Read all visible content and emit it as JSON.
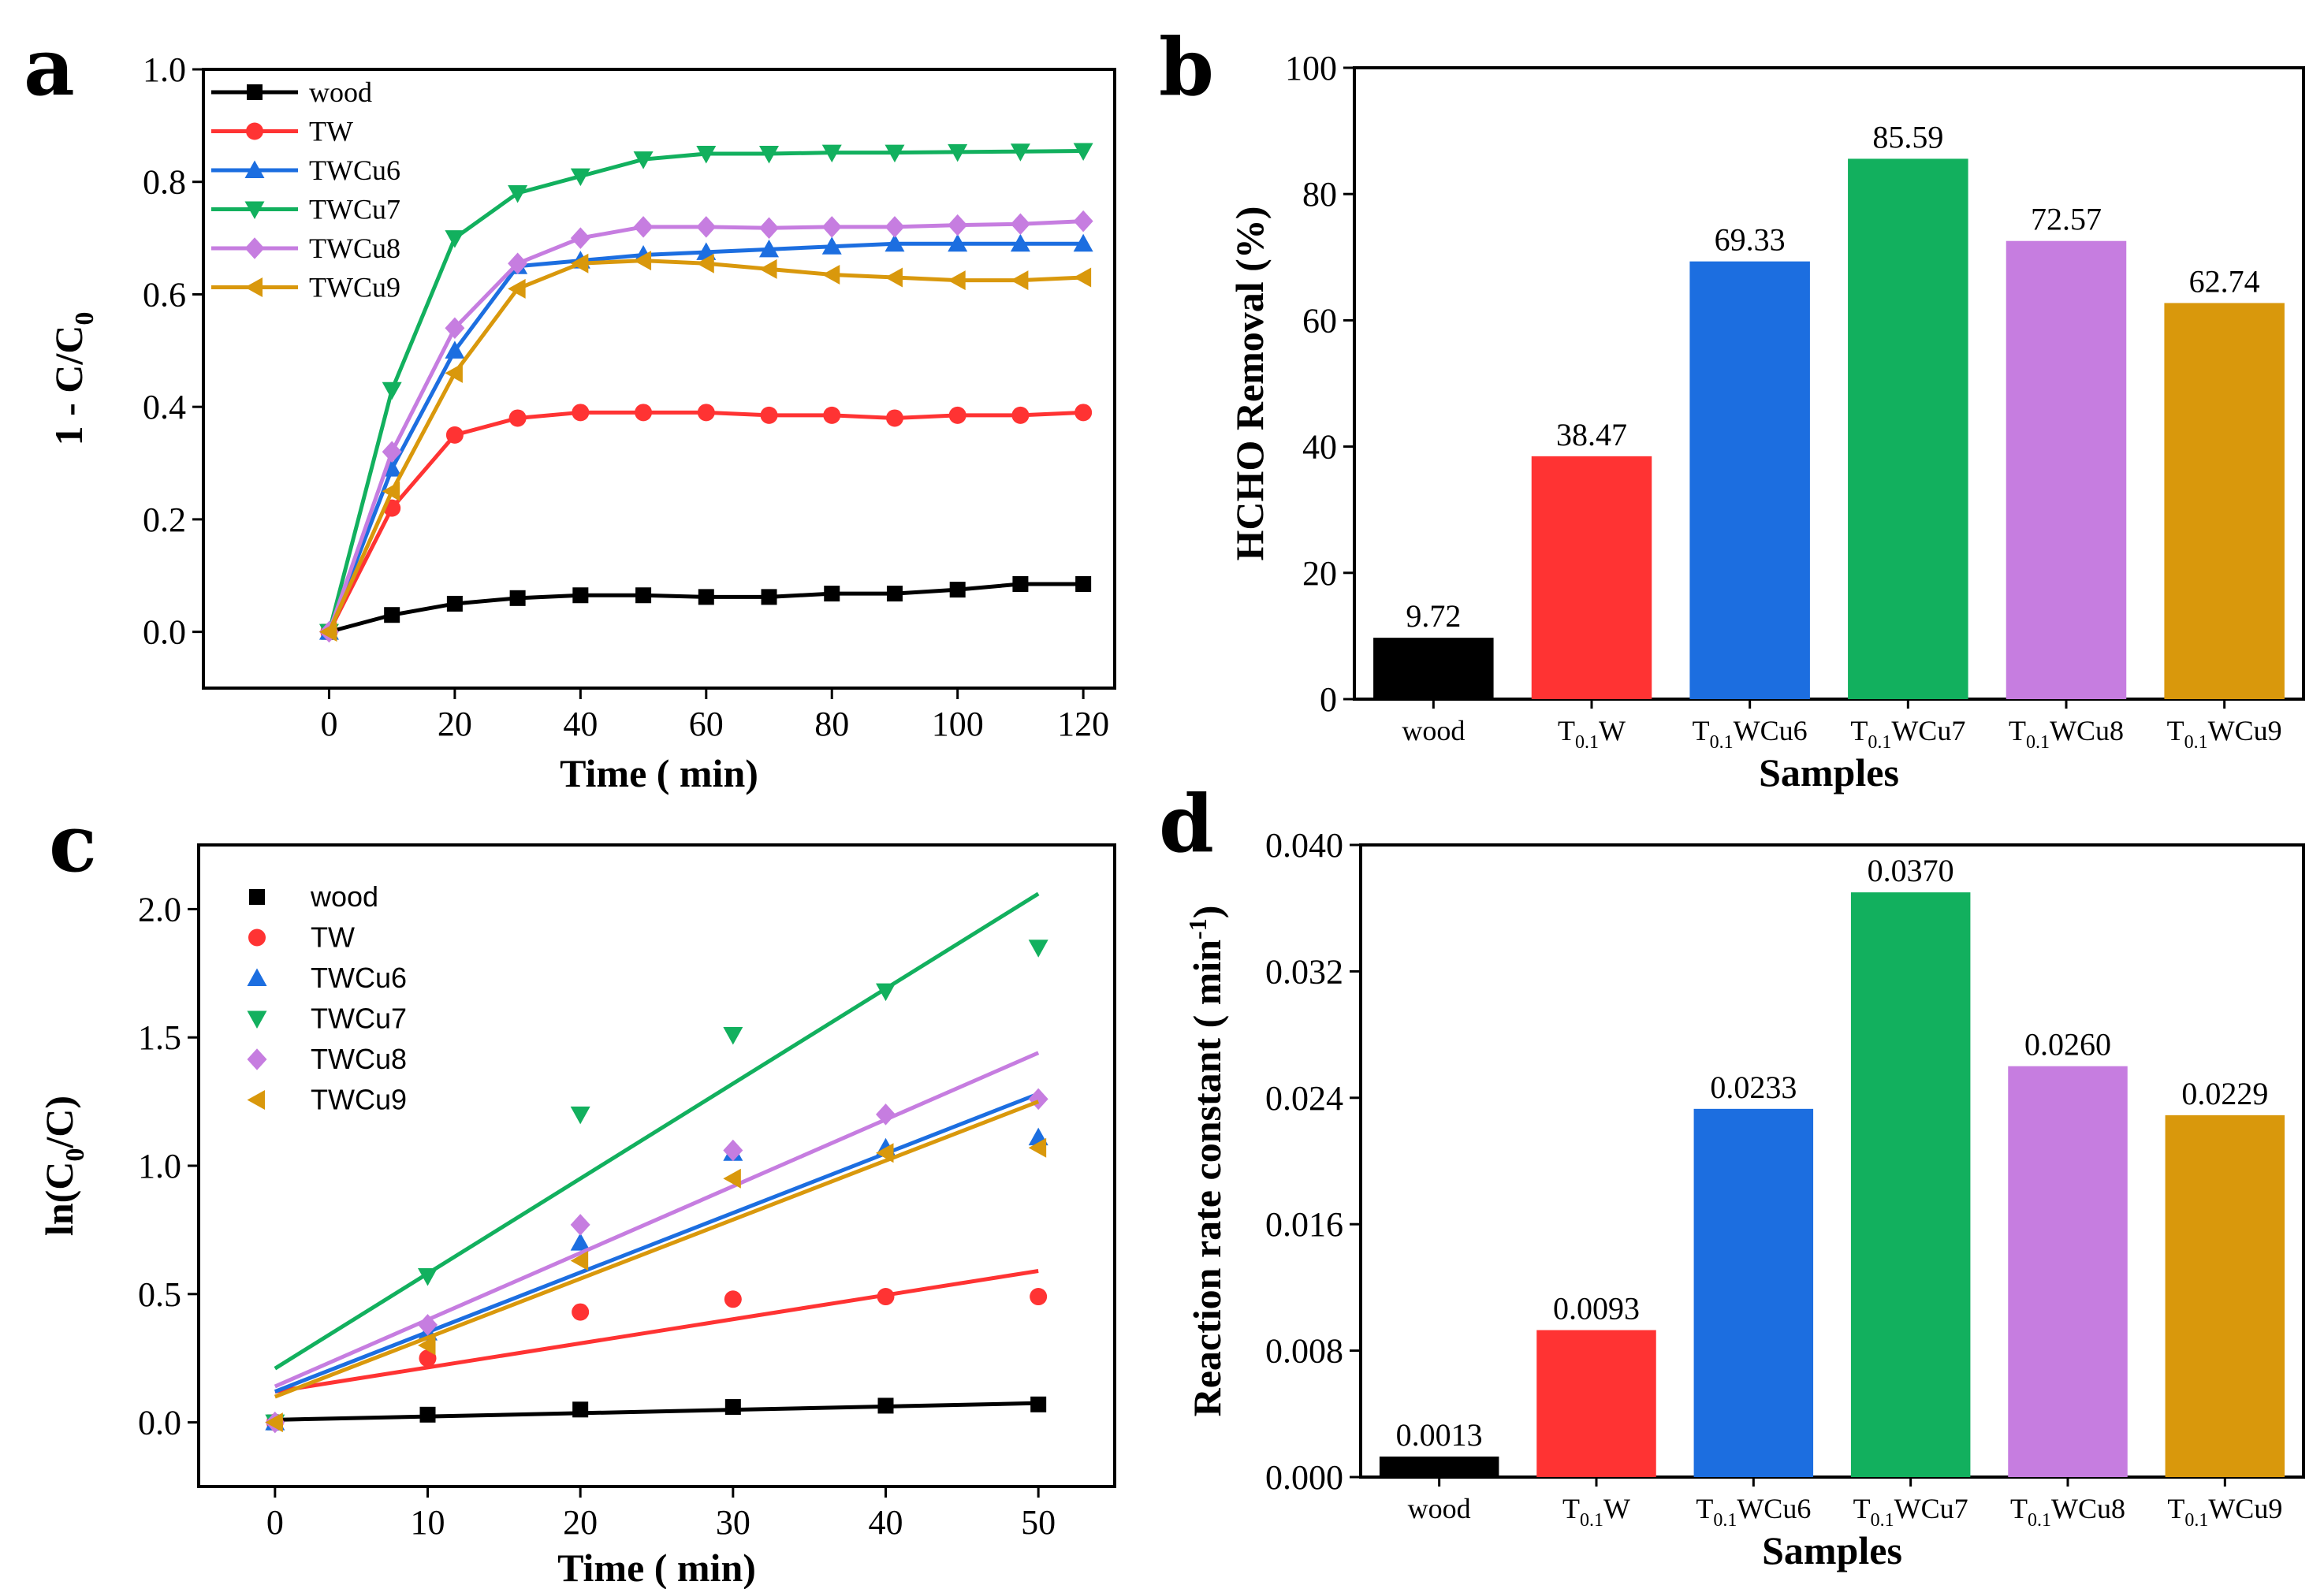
{
  "chart_data": [
    {
      "panel": "a",
      "type": "line",
      "xlabel": "Time ( min)",
      "ylabel": "1 - C/C",
      "ylabel_sub": "0",
      "xlim": [
        -20,
        125
      ],
      "ylim": [
        -0.1,
        1.0
      ],
      "xticks": [
        0,
        20,
        40,
        60,
        80,
        100,
        120
      ],
      "yticks": [
        0.0,
        0.2,
        0.4,
        0.6,
        0.8,
        1.0
      ],
      "x": [
        0,
        10,
        20,
        30,
        40,
        50,
        60,
        70,
        80,
        90,
        100,
        110,
        120
      ],
      "legend_position": "top-left",
      "series": [
        {
          "name": "wood",
          "color": "#000000",
          "marker": "square",
          "values": [
            0.0,
            0.03,
            0.05,
            0.06,
            0.065,
            0.065,
            0.062,
            0.062,
            0.068,
            0.068,
            0.075,
            0.085,
            0.085
          ]
        },
        {
          "name": "TW",
          "color": "#ff3333",
          "marker": "circle",
          "values": [
            0.0,
            0.22,
            0.35,
            0.38,
            0.39,
            0.39,
            0.39,
            0.385,
            0.385,
            0.38,
            0.385,
            0.385,
            0.39
          ]
        },
        {
          "name": "TWCu6",
          "color": "#1c6ee0",
          "marker": "triangle-up",
          "values": [
            0.0,
            0.29,
            0.5,
            0.65,
            0.66,
            0.67,
            0.675,
            0.68,
            0.685,
            0.69,
            0.69,
            0.69,
            0.69
          ]
        },
        {
          "name": "TWCu7",
          "color": "#12b05e",
          "marker": "triangle-down",
          "values": [
            0.0,
            0.43,
            0.7,
            0.78,
            0.81,
            0.84,
            0.85,
            0.85,
            0.852,
            0.852,
            0.853,
            0.854,
            0.855
          ]
        },
        {
          "name": "TWCu8",
          "color": "#c67de0",
          "marker": "diamond",
          "values": [
            0.0,
            0.32,
            0.54,
            0.655,
            0.7,
            0.72,
            0.72,
            0.718,
            0.72,
            0.72,
            0.723,
            0.725,
            0.73
          ]
        },
        {
          "name": "TWCu9",
          "color": "#d9980c",
          "marker": "triangle-left",
          "values": [
            0.0,
            0.25,
            0.46,
            0.61,
            0.655,
            0.66,
            0.655,
            0.645,
            0.635,
            0.63,
            0.625,
            0.625,
            0.63
          ]
        }
      ]
    },
    {
      "panel": "b",
      "type": "bar",
      "xlabel": "Samples",
      "ylabel": "HCHO Removal (%)",
      "ylim": [
        0,
        100
      ],
      "yticks": [
        0,
        20,
        40,
        60,
        80,
        100
      ],
      "categories": [
        {
          "pre": "wood",
          "sub": "",
          "post": ""
        },
        {
          "pre": "T",
          "sub": "0.1",
          "post": "W"
        },
        {
          "pre": "T",
          "sub": "0.1",
          "post": "WCu6"
        },
        {
          "pre": "T",
          "sub": "0.1",
          "post": "WCu7"
        },
        {
          "pre": "T",
          "sub": "0.1",
          "post": "WCu8"
        },
        {
          "pre": "T",
          "sub": "0.1",
          "post": "WCu9"
        }
      ],
      "values": [
        9.72,
        38.47,
        69.33,
        85.59,
        72.57,
        62.74
      ],
      "labels": [
        "9.72",
        "38.47",
        "69.33",
        "85.59",
        "72.57",
        "62.74"
      ],
      "colors": [
        "#000000",
        "#ff3333",
        "#1c6ee0",
        "#12b05e",
        "#c67de0",
        "#d9980c"
      ]
    },
    {
      "panel": "c",
      "type": "scatter",
      "xlabel": "Time ( min)",
      "ylabel": "ln(C",
      "ylabel_sub": "0",
      "ylabel_end": "/C)",
      "xlim": [
        -5,
        55
      ],
      "ylim": [
        -0.25,
        2.25
      ],
      "xticks": [
        0,
        10,
        20,
        30,
        40,
        50
      ],
      "yticks": [
        0.0,
        0.5,
        1.0,
        1.5,
        2.0
      ],
      "yticklabels": [
        "0.0",
        "0.5",
        "1.0",
        "1.5",
        "2.0"
      ],
      "x": [
        0,
        10,
        20,
        30,
        40,
        50
      ],
      "legend_position": "top-left",
      "series": [
        {
          "name": "wood",
          "color": "#000000",
          "marker": "square",
          "values": [
            0.0,
            0.03,
            0.05,
            0.06,
            0.065,
            0.07
          ],
          "fit": [
            0.01,
            0.075
          ]
        },
        {
          "name": "TW",
          "color": "#ff3333",
          "marker": "circle",
          "values": [
            0.0,
            0.25,
            0.43,
            0.48,
            0.49,
            0.49
          ],
          "fit": [
            0.12,
            0.59
          ]
        },
        {
          "name": "TWCu6",
          "color": "#1c6ee0",
          "marker": "triangle-up",
          "values": [
            0.0,
            0.35,
            0.7,
            1.05,
            1.07,
            1.11
          ],
          "fit": [
            0.12,
            1.28
          ]
        },
        {
          "name": "TWCu7",
          "color": "#12b05e",
          "marker": "triangle-down",
          "values": [
            0.0,
            0.57,
            1.2,
            1.51,
            1.68,
            1.85
          ],
          "fit": [
            0.21,
            2.06
          ]
        },
        {
          "name": "TWCu8",
          "color": "#c67de0",
          "marker": "diamond",
          "values": [
            0.0,
            0.38,
            0.77,
            1.06,
            1.2,
            1.26
          ],
          "fit": [
            0.14,
            1.44
          ]
        },
        {
          "name": "TWCu9",
          "color": "#d9980c",
          "marker": "triangle-left",
          "values": [
            0.0,
            0.3,
            0.63,
            0.95,
            1.05,
            1.07
          ],
          "fit": [
            0.1,
            1.25
          ]
        }
      ]
    },
    {
      "panel": "d",
      "type": "bar",
      "xlabel": "Samples",
      "ylabel": "Reaction rate constant ( min",
      "ylabel_sup": "-1",
      "ylabel_end": ")",
      "ylim": [
        0,
        0.04
      ],
      "yticks": [
        0.0,
        0.008,
        0.016,
        0.024,
        0.032,
        0.04
      ],
      "yticklabels": [
        "0.000",
        "0.008",
        "0.016",
        "0.024",
        "0.032",
        "0.040"
      ],
      "categories": [
        {
          "pre": "wood",
          "sub": "",
          "post": ""
        },
        {
          "pre": "T",
          "sub": "0.1",
          "post": "W"
        },
        {
          "pre": "T",
          "sub": "0.1",
          "post": "WCu6"
        },
        {
          "pre": "T",
          "sub": "0.1",
          "post": "WCu7"
        },
        {
          "pre": "T",
          "sub": "0.1",
          "post": "WCu8"
        },
        {
          "pre": "T",
          "sub": "0.1",
          "post": "WCu9"
        }
      ],
      "values": [
        0.0013,
        0.0093,
        0.0233,
        0.037,
        0.026,
        0.0229
      ],
      "labels": [
        "0.0013",
        "0.0093",
        "0.0233",
        "0.0370",
        "0.0260",
        "0.0229"
      ],
      "colors": [
        "#000000",
        "#ff3333",
        "#1c6ee0",
        "#12b05e",
        "#c67de0",
        "#d9980c"
      ]
    }
  ],
  "panel_letters": {
    "a": "a",
    "b": "b",
    "c": "c",
    "d": "d"
  }
}
